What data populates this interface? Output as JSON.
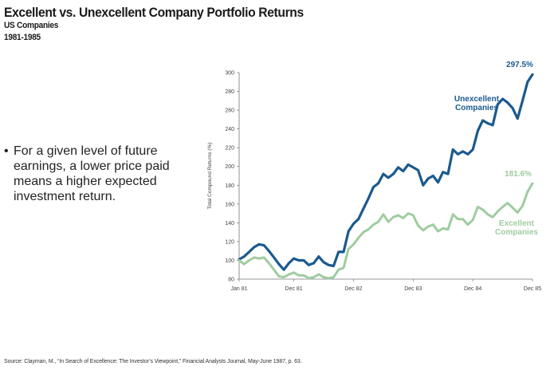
{
  "header": {
    "title": "Excellent vs. Unexcellent Company Portfolio Returns",
    "subtitle_1": "US Companies",
    "subtitle_2": "1981-1985"
  },
  "bullet": {
    "mark": "•",
    "text": "For a given level of future earnings, a lower price paid means a higher expected investment return."
  },
  "source": "Source: Clayman, M., “In Search of Excellence: The Investor’s Viewpoint,” Financial Analysts Journal, May-June 1987, p. 63.",
  "chart_data": {
    "type": "line",
    "title": "",
    "xlabel": "",
    "ylabel": "Total Compound Returns (%)",
    "ylim": [
      80,
      300
    ],
    "yticks": [
      80,
      100,
      120,
      140,
      160,
      180,
      200,
      220,
      240,
      260,
      280,
      300
    ],
    "xlim": [
      0,
      59
    ],
    "x_ticks": [
      {
        "x": 0,
        "label": "Jan 81"
      },
      {
        "x": 11,
        "label": "Dec 81"
      },
      {
        "x": 23,
        "label": "Dec 82"
      },
      {
        "x": 35,
        "label": "Dec 83"
      },
      {
        "x": 47,
        "label": "Dec 84"
      },
      {
        "x": 59,
        "label": "Dec 85"
      }
    ],
    "grid": false,
    "legend": "inline",
    "series": [
      {
        "name": "Unexcellent Companies",
        "color": "#1b5a8e",
        "end_label": "297.5%",
        "values": [
          101,
          104,
          109,
          114,
          117,
          116,
          110,
          103,
          96,
          90,
          97,
          102,
          100,
          100,
          95,
          97,
          104,
          98,
          95,
          94,
          109,
          109,
          131,
          139,
          144,
          155,
          166,
          178,
          182,
          192,
          188,
          192,
          199,
          195,
          202,
          199,
          196,
          180,
          187,
          190,
          183,
          194,
          192,
          218,
          213,
          216,
          213,
          218,
          238,
          249,
          246,
          244,
          266,
          272,
          268,
          262,
          251,
          270,
          290,
          298
        ]
      },
      {
        "name": "Excellent Companies",
        "color": "#9fcca0",
        "end_label": "181.6%",
        "values": [
          100,
          96,
          100,
          103,
          102,
          103,
          97,
          90,
          83,
          82,
          85,
          87,
          84,
          84,
          81,
          82,
          85,
          82,
          81,
          82,
          90,
          92,
          112,
          117,
          124,
          130,
          133,
          138,
          141,
          149,
          141,
          146,
          148,
          145,
          150,
          148,
          137,
          132,
          136,
          138,
          131,
          134,
          133,
          149,
          144,
          144,
          138,
          143,
          157,
          154,
          149,
          146,
          152,
          157,
          161,
          156,
          151,
          158,
          173,
          182
        ]
      }
    ]
  }
}
